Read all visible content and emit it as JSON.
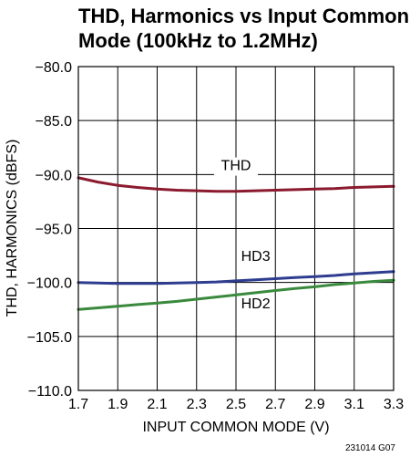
{
  "chart_data": {
    "type": "line",
    "title": "THD, Harmonics vs Input Common\nMode (100kHz to 1.2MHz)",
    "xlabel": "INPUT COMMON MODE (V)",
    "ylabel": "THD, HARMONICS (dBFS)",
    "xlim": [
      1.7,
      3.3
    ],
    "ylim": [
      -110.0,
      -80.0
    ],
    "x_ticks": [
      "1.7",
      "1.9",
      "2.1",
      "2.3",
      "2.5",
      "2.7",
      "2.9",
      "3.1",
      "3.3"
    ],
    "y_ticks": [
      "−80.0",
      "−85.0",
      "−90.0",
      "−95.0",
      "−100.0",
      "−105.0",
      "−110.0"
    ],
    "grid": true,
    "x": [
      1.7,
      1.8,
      1.9,
      2.0,
      2.1,
      2.2,
      2.3,
      2.4,
      2.5,
      2.6,
      2.7,
      2.8,
      2.9,
      3.0,
      3.1,
      3.2,
      3.3
    ],
    "series": [
      {
        "name": "THD",
        "color": "#8b1a2e",
        "values": [
          -90.3,
          -90.7,
          -91.0,
          -91.2,
          -91.35,
          -91.45,
          -91.5,
          -91.55,
          -91.55,
          -91.5,
          -91.45,
          -91.4,
          -91.35,
          -91.3,
          -91.2,
          -91.15,
          -91.1
        ]
      },
      {
        "name": "HD3",
        "color": "#2e3d8f",
        "values": [
          -100.0,
          -100.05,
          -100.1,
          -100.1,
          -100.1,
          -100.05,
          -100.0,
          -99.95,
          -99.85,
          -99.75,
          -99.65,
          -99.55,
          -99.45,
          -99.35,
          -99.2,
          -99.1,
          -99.0
        ]
      },
      {
        "name": "HD2",
        "color": "#3a8a3e",
        "values": [
          -102.5,
          -102.35,
          -102.2,
          -102.05,
          -101.9,
          -101.75,
          -101.55,
          -101.35,
          -101.15,
          -100.95,
          -100.75,
          -100.55,
          -100.4,
          -100.2,
          -100.05,
          -99.9,
          -99.8
        ]
      }
    ],
    "figure_code": "231014 G07"
  }
}
